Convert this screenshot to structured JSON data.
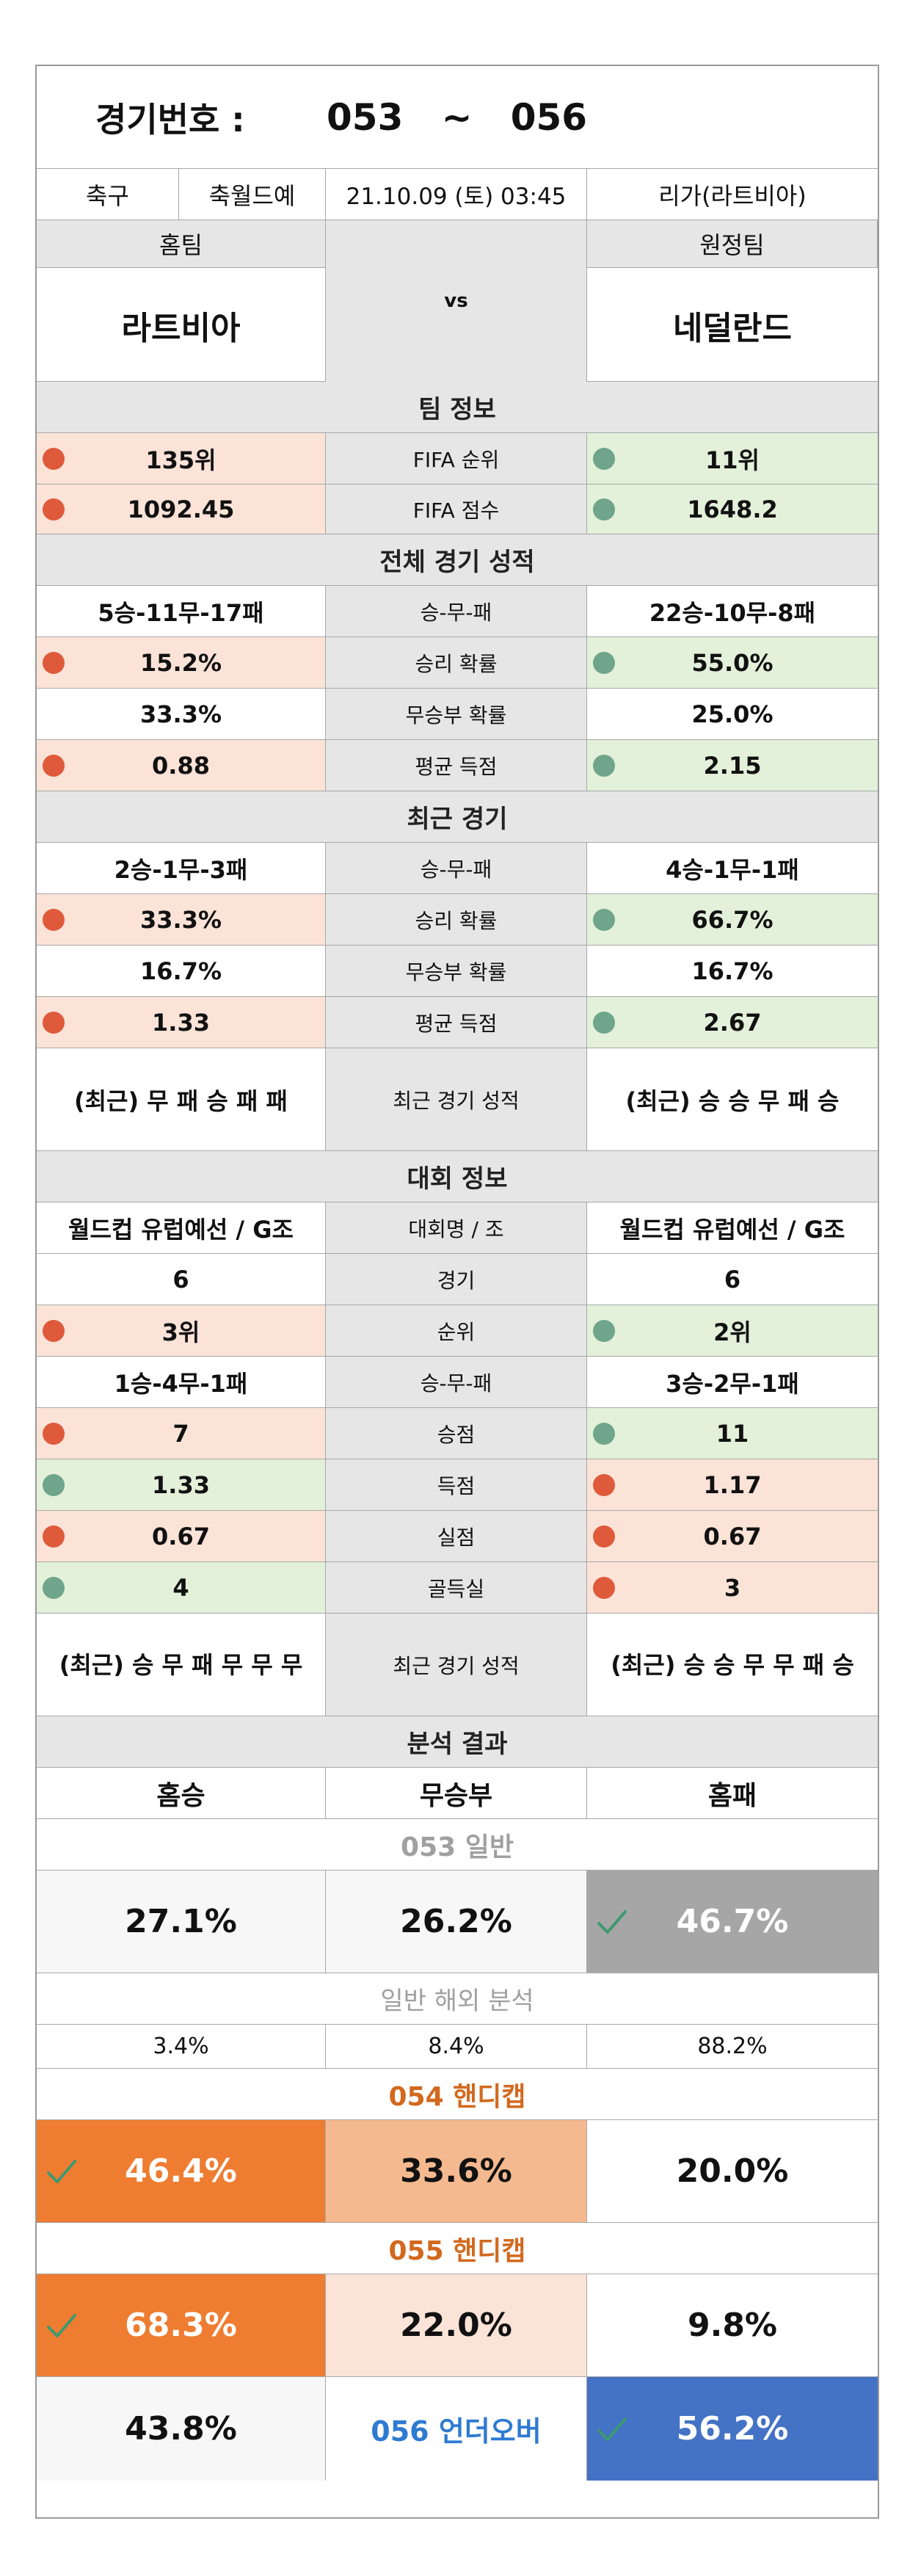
{
  "header": {
    "label": "경기번호 :",
    "range": "053   ~   056"
  },
  "info": {
    "sport": "축구",
    "event": "축월드예",
    "datetime": "21.10.09 (토) 03:45",
    "league": "리가(라트비아)"
  },
  "teams": {
    "home_label": "홈팀",
    "away_label": "원정팀",
    "home": "라트비아",
    "vs": "vs",
    "away": "네덜란드"
  },
  "team_info": {
    "title": "팀 정보",
    "rows": [
      {
        "home": "135위",
        "label": "FIFA 순위",
        "away": "11위"
      },
      {
        "home": "1092.45",
        "label": "FIFA 점수",
        "away": "1648.2"
      }
    ]
  },
  "overall": {
    "title": "전체 경기 성적",
    "rows": [
      {
        "home": "5승-11무-17패",
        "label": "승-무-패",
        "away": "22승-10무-8패"
      },
      {
        "home": "15.2%",
        "label": "승리 확률",
        "away": "55.0%"
      },
      {
        "home": "33.3%",
        "label": "무승부 확률",
        "away": "25.0%"
      },
      {
        "home": "0.88",
        "label": "평균 득점",
        "away": "2.15"
      }
    ]
  },
  "recent": {
    "title": "최근 경기",
    "rows": [
      {
        "home": "2승-1무-3패",
        "label": "승-무-패",
        "away": "4승-1무-1패"
      },
      {
        "home": "33.3%",
        "label": "승리 확률",
        "away": "66.7%"
      },
      {
        "home": "16.7%",
        "label": "무승부 확률",
        "away": "16.7%"
      },
      {
        "home": "1.33",
        "label": "평균 득점",
        "away": "2.67"
      },
      {
        "home": "(최근) 무 패 승 패 패",
        "label": "최근 경기 성적",
        "away": "(최근) 승 승 무 패 승"
      }
    ]
  },
  "tournament": {
    "title": "대회 정보",
    "rows": [
      {
        "home": "월드컵 유럽예선 / G조",
        "label": "대회명 / 조",
        "away": "월드컵 유럽예선 / G조"
      },
      {
        "home": "6",
        "label": "경기",
        "away": "6"
      },
      {
        "home": "3위",
        "label": "순위",
        "away": "2위"
      },
      {
        "home": "1승-4무-1패",
        "label": "승-무-패",
        "away": "3승-2무-1패"
      },
      {
        "home": "7",
        "label": "승점",
        "away": "11"
      },
      {
        "home": "1.33",
        "label": "득점",
        "away": "1.17"
      },
      {
        "home": "0.67",
        "label": "실점",
        "away": "0.67"
      },
      {
        "home": "4",
        "label": "골득실",
        "away": "3"
      },
      {
        "home": "(최근) 승 무 패 무 무 무",
        "label": "최근 경기 성적",
        "away": "(최근) 승 승 무 무 패 승"
      }
    ]
  },
  "analysis": {
    "title": "분석 결과",
    "cols": [
      "홈승",
      "무승부",
      "홈패"
    ],
    "general_title": "053 일반",
    "general": [
      "27.1%",
      "26.2%",
      "46.7%"
    ],
    "overseas_title": "일반 해외 분석",
    "overseas": [
      "3.4%",
      "8.4%",
      "88.2%"
    ],
    "h054_title": "054 핸디캡",
    "h054": [
      "46.4%",
      "33.6%",
      "20.0%"
    ],
    "h055_title": "055 핸디캡",
    "h055": [
      "68.3%",
      "22.0%",
      "9.8%"
    ],
    "ou_title": "056 언더오버",
    "ou": [
      "43.8%",
      "56.2%"
    ]
  },
  "colors": {
    "red_dot": "#df5a3a",
    "green_dot": "#6fa58a",
    "orange": "#ee7d31",
    "blue": "#4472c4",
    "gray_pick": "#a6a6a6"
  },
  "icons": {
    "pick": "check-icon"
  }
}
